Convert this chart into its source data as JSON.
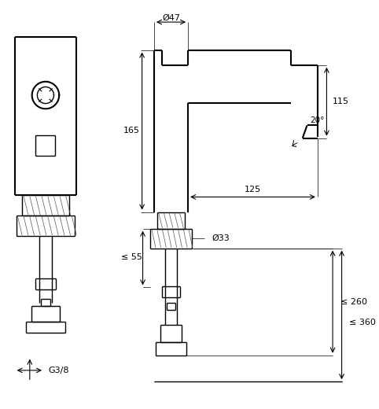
{
  "bg_color": "#ffffff",
  "line_color": "#000000",
  "fig_width": 4.82,
  "fig_height": 5.2,
  "dpi": 100,
  "annotations": {
    "d47": "Ø47",
    "d33": "Ø33",
    "dim_165": "165",
    "dim_125": "125",
    "dim_115": "115",
    "dim_55": "≤ 55",
    "dim_260": "≤ 260",
    "dim_360": "≤ 360",
    "angle_20": "20°",
    "g38": "G3/8"
  }
}
